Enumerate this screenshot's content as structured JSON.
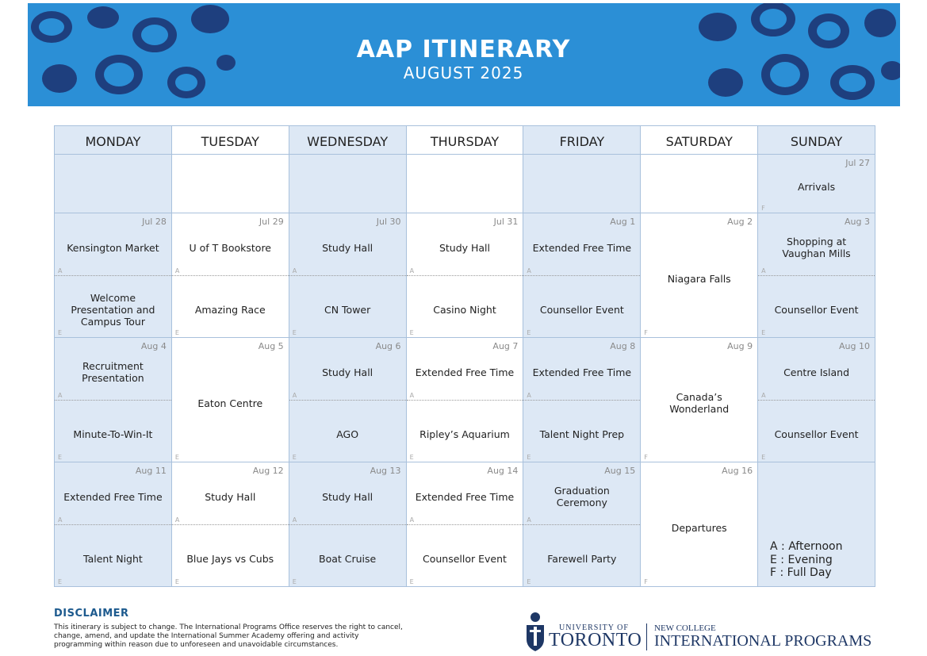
{
  "header": {
    "title": "AAP ITINERARY",
    "subtitle": "AUGUST 2025"
  },
  "calendar": {
    "days": [
      "MONDAY",
      "TUESDAY",
      "WEDNESDAY",
      "THURSDAY",
      "FRIDAY",
      "SATURDAY",
      "SUNDAY"
    ],
    "weeks": [
      [
        null,
        null,
        null,
        null,
        null,
        null,
        {
          "date": "Jul 27",
          "slots": [
            {
              "code": "F",
              "activity": "Arrivals"
            }
          ]
        }
      ],
      [
        {
          "date": "Jul 28",
          "slots": [
            {
              "code": "A",
              "activity": "Kensington Market"
            },
            {
              "code": "E",
              "activity": "Welcome Presentation and Campus Tour"
            }
          ]
        },
        {
          "date": "Jul 29",
          "slots": [
            {
              "code": "A",
              "activity": "U of T Bookstore"
            },
            {
              "code": "E",
              "activity": "Amazing Race"
            }
          ]
        },
        {
          "date": "Jul 30",
          "slots": [
            {
              "code": "A",
              "activity": "Study Hall"
            },
            {
              "code": "E",
              "activity": "CN Tower"
            }
          ]
        },
        {
          "date": "Jul 31",
          "slots": [
            {
              "code": "A",
              "activity": "Study Hall"
            },
            {
              "code": "E",
              "activity": "Casino Night"
            }
          ]
        },
        {
          "date": "Aug 1",
          "slots": [
            {
              "code": "A",
              "activity": "Extended Free Time"
            },
            {
              "code": "E",
              "activity": "Counsellor Event"
            }
          ]
        },
        {
          "date": "Aug 2",
          "slots": [
            {
              "code": "F",
              "activity": "Niagara Falls"
            }
          ]
        },
        {
          "date": "Aug 3",
          "slots": [
            {
              "code": "A",
              "activity": "Shopping at Vaughan Mills"
            },
            {
              "code": "E",
              "activity": "Counsellor Event"
            }
          ]
        }
      ],
      [
        {
          "date": "Aug 4",
          "slots": [
            {
              "code": "A",
              "activity": "Recruitment Presentation"
            },
            {
              "code": "E",
              "activity": "Minute-To-Win-It"
            }
          ]
        },
        {
          "date": "Aug 5",
          "slots": [
            {
              "code": "E",
              "activity": "Eaton Centre"
            }
          ]
        },
        {
          "date": "Aug 6",
          "slots": [
            {
              "code": "A",
              "activity": "Study Hall"
            },
            {
              "code": "E",
              "activity": "AGO"
            }
          ]
        },
        {
          "date": "Aug 7",
          "slots": [
            {
              "code": "A",
              "activity": "Extended Free Time"
            },
            {
              "code": "E",
              "activity": "Ripley’s Aquarium"
            }
          ]
        },
        {
          "date": "Aug 8",
          "slots": [
            {
              "code": "A",
              "activity": "Extended Free Time"
            },
            {
              "code": "E",
              "activity": "Talent Night Prep"
            }
          ]
        },
        {
          "date": "Aug 9",
          "slots": [
            {
              "code": "F",
              "activity": "Canada’s Wonderland"
            }
          ]
        },
        {
          "date": "Aug 10",
          "slots": [
            {
              "code": "A",
              "activity": "Centre Island"
            },
            {
              "code": "E",
              "activity": "Counsellor Event"
            }
          ]
        }
      ],
      [
        {
          "date": "Aug 11",
          "slots": [
            {
              "code": "A",
              "activity": "Extended Free Time"
            },
            {
              "code": "E",
              "activity": "Talent Night"
            }
          ]
        },
        {
          "date": "Aug 12",
          "slots": [
            {
              "code": "A",
              "activity": "Study Hall"
            },
            {
              "code": "E",
              "activity": "Blue Jays vs Cubs"
            }
          ]
        },
        {
          "date": "Aug 13",
          "slots": [
            {
              "code": "A",
              "activity": "Study Hall"
            },
            {
              "code": "E",
              "activity": "Boat Cruise"
            }
          ]
        },
        {
          "date": "Aug 14",
          "slots": [
            {
              "code": "A",
              "activity": "Extended Free Time"
            },
            {
              "code": "E",
              "activity": "Counsellor Event"
            }
          ]
        },
        {
          "date": "Aug 15",
          "slots": [
            {
              "code": "A",
              "activity": "Graduation Ceremony"
            },
            {
              "code": "E",
              "activity": "Farewell Party"
            }
          ]
        },
        {
          "date": "Aug 16",
          "slots": [
            {
              "code": "F",
              "activity": "Departures"
            }
          ]
        },
        null
      ]
    ],
    "legend": [
      "A : Afternoon",
      "E : Evening",
      "F : Full Day"
    ]
  },
  "footer": {
    "disclaimer_title": "DISCLAIMER",
    "disclaimer_text": "This itinerary is subject to change. The International Programs Office reserves the right to cancel, change, amend, and update the International Summer Academy offering and activity programming within reason due to unforeseen and unavoidable circumstances.",
    "university_of": "UNIVERSITY OF",
    "toronto": "TORONTO",
    "new_college": "NEW COLLEGE",
    "international_programs": "INTERNATIONAL PROGRAMS"
  }
}
